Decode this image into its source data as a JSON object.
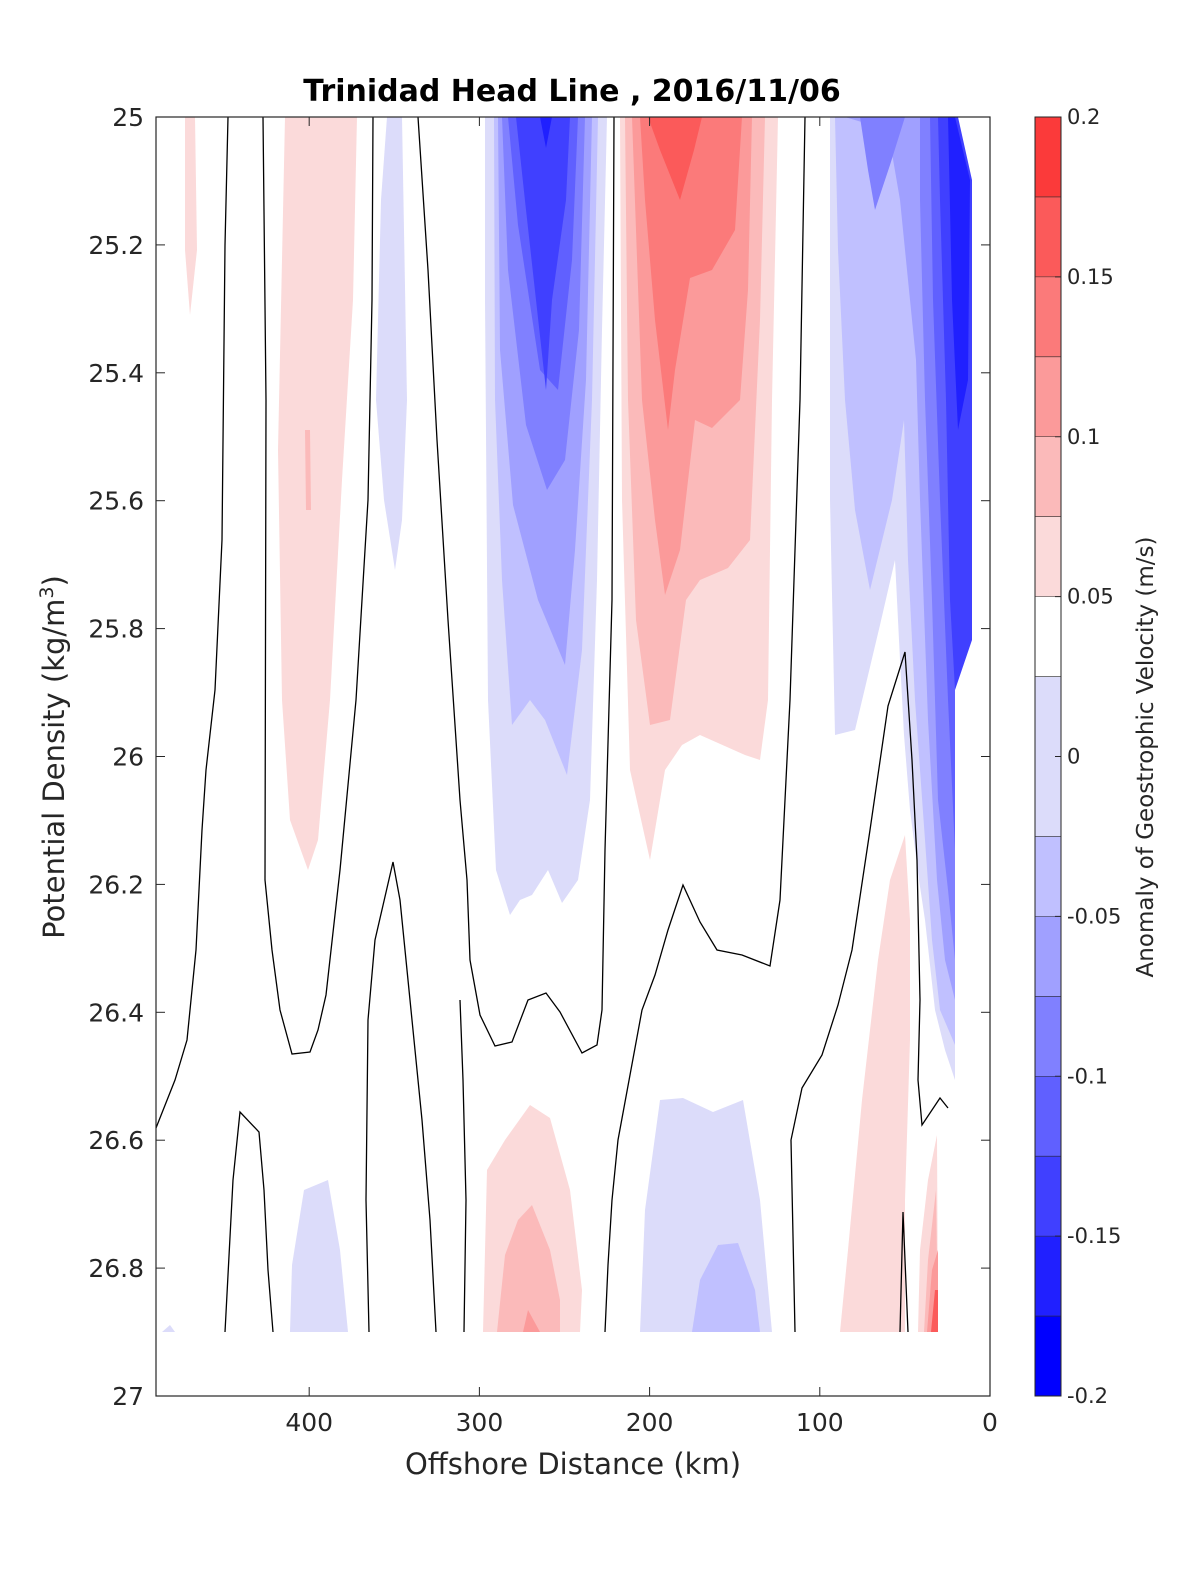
{
  "chart_data": {
    "type": "contour",
    "title": "Trinidad Head Line , 2016/11/06",
    "xlabel": "Offshore Distance (km)",
    "ylabel_main": "Potential Density (kg/m",
    "ylabel_sup": "3",
    "ylabel_close": ")",
    "colorbar_label": "Anomaly of Geostrophic Velocity (m/s)",
    "x_range": [
      490,
      0
    ],
    "x_reversed": true,
    "y_range": [
      25,
      27
    ],
    "y_reversed": true,
    "x_ticks": [
      400,
      300,
      200,
      100,
      0
    ],
    "x_tick_labels": [
      "400",
      "300",
      "200",
      "100",
      "0"
    ],
    "y_ticks": [
      25,
      25.2,
      25.4,
      25.6,
      25.8,
      26,
      26.2,
      26.4,
      26.6,
      26.8,
      27
    ],
    "y_tick_labels": [
      "25",
      "25.2",
      "25.4",
      "25.6",
      "25.8",
      "26",
      "26.2",
      "26.4",
      "26.6",
      "26.8",
      "27"
    ],
    "colorbar_range": [
      -0.2,
      0.2
    ],
    "colorbar_ticks": [
      0.2,
      0.15,
      0.1,
      0.05,
      0,
      -0.05,
      -0.1,
      -0.15,
      -0.2
    ],
    "colorbar_tick_labels": [
      "0.2",
      "0.15",
      "0.1",
      "0.05",
      "0",
      "-0.05",
      "-0.1",
      "-0.15",
      "-0.2"
    ],
    "contour_levels": [
      -0.2,
      -0.175,
      -0.15,
      -0.125,
      -0.1,
      -0.075,
      -0.05,
      -0.025,
      0.025,
      0.05,
      0.075,
      0.1,
      0.125,
      0.15,
      0.175,
      0.2
    ],
    "level_colors": [
      "#0000ff",
      "#2020ff",
      "#4040ff",
      "#6060ff",
      "#8080ff",
      "#a0a0ff",
      "#c0c0ff",
      "#dcdcfa",
      "#ffffff",
      "#fbdada",
      "#fbbaba",
      "#fb9a9a",
      "#fb7a7a",
      "#fb5a5a",
      "#fb3a3a",
      "#ff0000"
    ],
    "data_y_max": 26.9,
    "features": [
      {
        "kind": "positive",
        "x": [
          470,
          460
        ],
        "y": [
          25.0,
          25.3
        ],
        "peak": 0.03
      },
      {
        "kind": "positive",
        "x": [
          410,
          380
        ],
        "y": [
          25.0,
          26.15
        ],
        "peak": 0.04
      },
      {
        "kind": "negative",
        "x": [
          360,
          340
        ],
        "y": [
          25.0,
          25.7
        ],
        "peak": -0.03
      },
      {
        "kind": "negative",
        "x": [
          300,
          225
        ],
        "y": [
          25.0,
          26.25
        ],
        "peak": -0.16
      },
      {
        "kind": "positive",
        "x": [
          220,
          125
        ],
        "y": [
          25.0,
          26.15
        ],
        "peak": 0.13
      },
      {
        "kind": "negative",
        "x": [
          95,
          20
        ],
        "y": [
          25.0,
          26.5
        ],
        "peak": -0.18
      },
      {
        "kind": "negative",
        "x": [
          405,
          370
        ],
        "y": [
          26.65,
          26.9
        ],
        "peak": -0.03
      },
      {
        "kind": "positive",
        "x": [
          290,
          245
        ],
        "y": [
          26.55,
          26.9
        ],
        "peak": 0.07
      },
      {
        "kind": "negative",
        "x": [
          195,
          130
        ],
        "y": [
          26.55,
          26.9
        ],
        "peak": -0.06
      },
      {
        "kind": "positive",
        "x": [
          90,
          30
        ],
        "y": [
          26.1,
          26.9
        ],
        "peak": 0.15
      }
    ]
  }
}
